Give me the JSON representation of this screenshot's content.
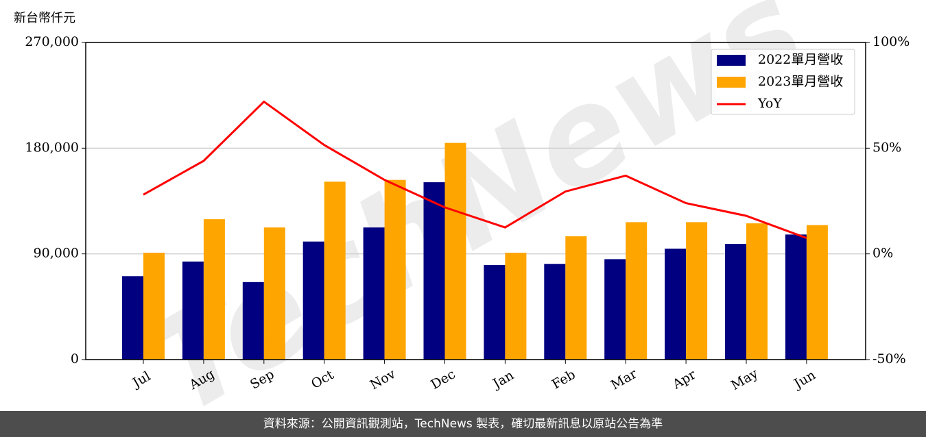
{
  "chart_data": {
    "type": "bar_line",
    "y_label": "新台幣仟元",
    "watermark": "TechNews",
    "categories": [
      "Jul",
      "Aug",
      "Sep",
      "Oct",
      "Nov",
      "Dec",
      "Jan",
      "Feb",
      "Mar",
      "Apr",
      "May",
      "Jun"
    ],
    "series": [
      {
        "name": "2022單月營收",
        "type": "bar",
        "color": "#000080",
        "values": [
          71000,
          83500,
          66000,
          100500,
          112500,
          151000,
          80500,
          81500,
          85500,
          94500,
          98500,
          106500
        ]
      },
      {
        "name": "2023單月營收",
        "type": "bar",
        "color": "#ffa500",
        "values": [
          91000,
          119500,
          112500,
          151500,
          153000,
          184500,
          91000,
          105000,
          117000,
          117000,
          116000,
          114500
        ]
      },
      {
        "name": "YoY",
        "type": "line",
        "axis": "y2",
        "color": "#ff0000",
        "values": [
          28,
          44,
          72,
          51.5,
          35,
          22,
          12.5,
          29.5,
          37,
          24,
          18,
          7.5
        ]
      }
    ],
    "ylim": [
      0,
      270000
    ],
    "yticks": [
      0,
      {
        "value": 90000,
        "label": "90,000"
      },
      {
        "value": 180000,
        "label": "180,000"
      },
      {
        "value": 270000,
        "label": "270,000"
      }
    ],
    "y2lim": [
      -50,
      100
    ],
    "y2ticks": [
      {
        "value": -50,
        "label": "-50%"
      },
      {
        "value": 0,
        "label": "0%"
      },
      {
        "value": 50,
        "label": "50%"
      },
      {
        "value": 100,
        "label": "100%"
      }
    ],
    "grid": true,
    "legend": "upper right"
  },
  "footer": "資料來源：公開資訊觀測站，TechNews 製表，確切最新訊息以原站公告為準"
}
